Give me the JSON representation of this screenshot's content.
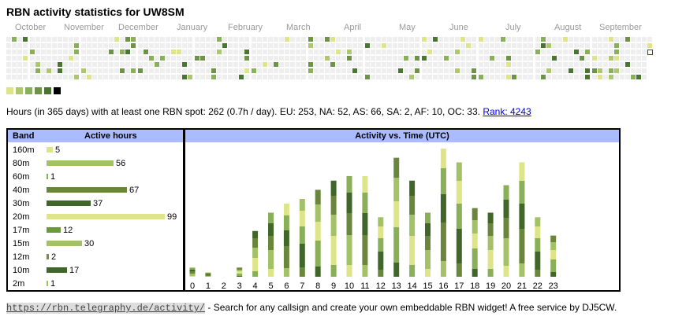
{
  "title": "RBN activity statistics for UW8SM",
  "months": [
    "October",
    "November",
    "December",
    "January",
    "February",
    "March",
    "April",
    "May",
    "June",
    "July",
    "August",
    "September"
  ],
  "palette": [
    "#dde588",
    "#adc76c",
    "#89af59",
    "#6e9348",
    "#4a7530",
    "#000000"
  ],
  "summary": {
    "text": "Hours (in 365 days) with at least one RBN spot: 262 (0.7h / day). EU: 253, NA: 52, AS: 66, SA: 2, AF: 10, OC: 33.",
    "rank_link": "Rank: 4243"
  },
  "band_table": {
    "col_band": "Band",
    "col_hours": "Active hours",
    "rows": [
      {
        "band": "160m",
        "hours": 5,
        "color": "#dde588"
      },
      {
        "band": "80m",
        "hours": 56,
        "color": "#a3c268"
      },
      {
        "band": "60m",
        "hours": 1,
        "color": "#89af59"
      },
      {
        "band": "40m",
        "hours": 67,
        "color": "#6a853c"
      },
      {
        "band": "30m",
        "hours": 37,
        "color": "#41662a"
      },
      {
        "band": "20m",
        "hours": 99,
        "color": "#dde588"
      },
      {
        "band": "17m",
        "hours": 12,
        "color": "#6a9a3a"
      },
      {
        "band": "15m",
        "hours": 30,
        "color": "#a3c268"
      },
      {
        "band": "12m",
        "hours": 2,
        "color": "#7f8c38"
      },
      {
        "band": "10m",
        "hours": 17,
        "color": "#41662a"
      },
      {
        "band": "2m",
        "hours": 1,
        "color": "#a3c268"
      }
    ]
  },
  "chart_data": {
    "type": "bar",
    "title": "Activity vs. Time (UTC)",
    "categories": [
      "0",
      "1",
      "2",
      "3",
      "4",
      "5",
      "6",
      "7",
      "8",
      "9",
      "10",
      "11",
      "12",
      "13",
      "14",
      "15",
      "16",
      "17",
      "18",
      "19",
      "20",
      "21",
      "22",
      "23"
    ],
    "values": [
      2,
      1,
      0,
      2,
      10,
      14,
      16,
      17,
      19,
      21,
      22,
      22,
      13,
      26,
      21,
      14,
      28,
      25,
      15,
      14,
      20,
      25,
      13,
      9
    ]
  },
  "footer": {
    "url": "https://rbn.telegraphy.de/activity/",
    "text": " - Search for any callsign and create your own embeddable RBN widget! A free service by DJ5CW."
  }
}
